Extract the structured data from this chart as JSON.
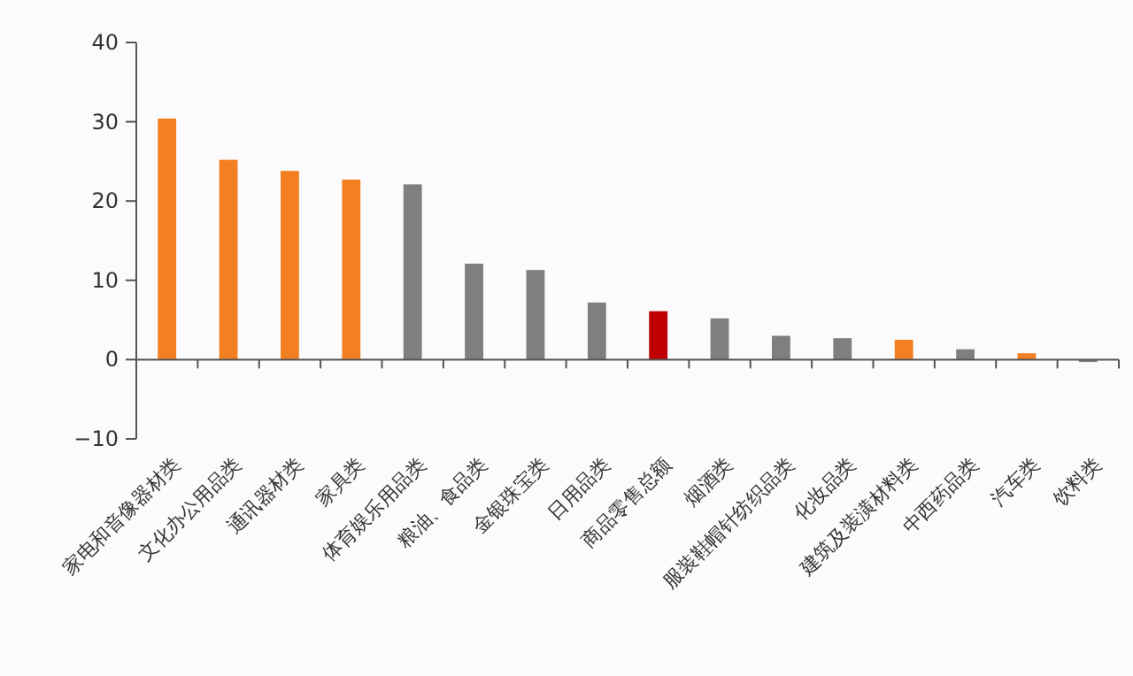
{
  "chart_data": {
    "type": "bar",
    "categories": [
      "家电和音像器材类",
      "文化办公用品类",
      "通讯器材类",
      "家具类",
      "体育娱乐用品类",
      "粮油、食品类",
      "金银珠宝类",
      "日用品类",
      "商品零售总额",
      "烟酒类",
      "服装鞋帽针纺织品类",
      "化妆品类",
      "建筑及装潢材料类",
      "中西药品类",
      "汽车类",
      "饮料类"
    ],
    "values": [
      30.4,
      25.2,
      23.8,
      22.7,
      22.1,
      12.1,
      11.3,
      7.2,
      6.1,
      5.2,
      3.0,
      2.7,
      2.5,
      1.3,
      0.8,
      -0.3
    ],
    "colors": [
      "#f28022",
      "#f28022",
      "#f28022",
      "#f28022",
      "#7f7f7f",
      "#7f7f7f",
      "#7f7f7f",
      "#7f7f7f",
      "#c00000",
      "#7f7f7f",
      "#7f7f7f",
      "#7f7f7f",
      "#f28022",
      "#7f7f7f",
      "#f28022",
      "#7f7f7f"
    ],
    "ylim": [
      -10,
      40
    ],
    "yticks": [
      -10,
      0,
      10,
      20,
      30,
      40
    ]
  }
}
